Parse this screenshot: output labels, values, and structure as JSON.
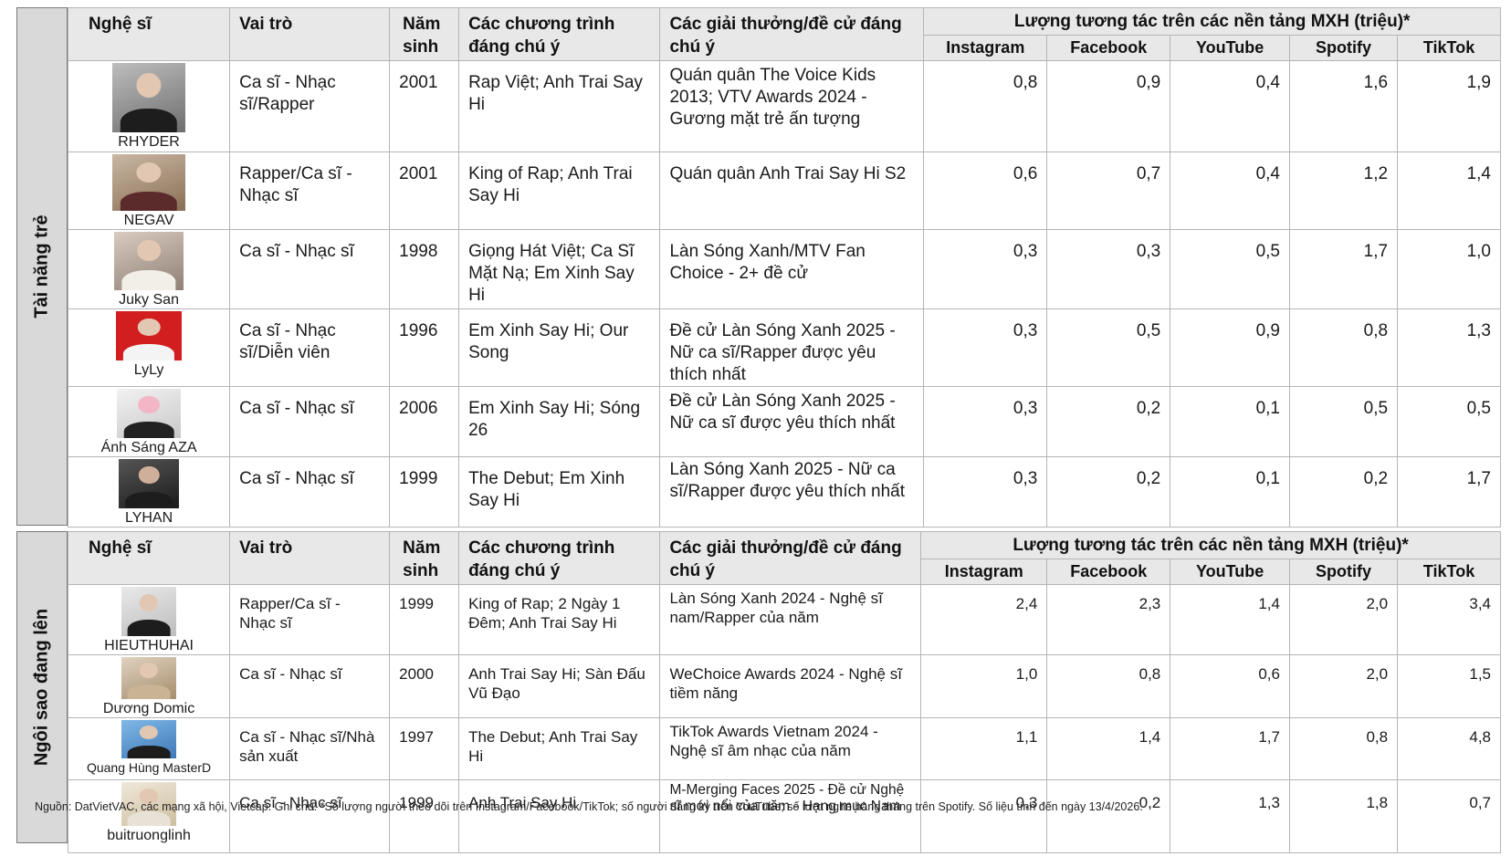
{
  "headers": {
    "artist": "Nghệ sĩ",
    "role": "Vai trò",
    "year": "Năm sinh",
    "programs": "Các chương trình đáng chú ý",
    "awards": "Các giải thưởng/đề cử đáng chú ý",
    "engagement": "Lượng tương tác trên các nền tảng MXH (triệu)*",
    "platforms": [
      "Instagram",
      "Facebook",
      "YouTube",
      "Spotify",
      "TikTok"
    ]
  },
  "sections": [
    {
      "label": "Tài năng trẻ",
      "rows": [
        {
          "name": "RHYDER",
          "role": "Ca sĩ - Nhạc sĩ/Rapper",
          "year": "2001",
          "programs": "Rap Việt; Anh Trai Say Hi",
          "awards": "Quán quân The Voice Kids 2013; VTV Awards 2024 - Gương mặt trẻ ấn tượng",
          "metrics": [
            "0,8",
            "0,9",
            "0,4",
            "1,6",
            "1,9"
          ]
        },
        {
          "name": "NEGAV",
          "role": "Rapper/Ca sĩ - Nhạc sĩ",
          "year": "2001",
          "programs": "King of Rap; Anh Trai Say Hi",
          "awards": "Quán quân Anh Trai Say Hi S2",
          "metrics": [
            "0,6",
            "0,7",
            "0,4",
            "1,2",
            "1,4"
          ]
        },
        {
          "name": "Juky San",
          "role": "Ca sĩ - Nhạc sĩ",
          "year": "1998",
          "programs": "Giọng Hát Việt; Ca Sĩ Mặt Nạ; Em Xinh Say Hi",
          "awards": "Làn Sóng Xanh/MTV Fan Choice - 2+ đề cử",
          "metrics": [
            "0,3",
            "0,3",
            "0,5",
            "1,7",
            "1,0"
          ]
        },
        {
          "name": "LyLy",
          "role": "Ca sĩ - Nhạc sĩ/Diễn viên",
          "year": "1996",
          "programs": "Em Xinh Say Hi; Our Song",
          "awards": "Đề cử Làn Sóng Xanh 2025 - Nữ ca sĩ/Rapper được yêu thích nhất",
          "metrics": [
            "0,3",
            "0,5",
            "0,9",
            "0,8",
            "1,3"
          ]
        },
        {
          "name": "Ánh Sáng AZA",
          "role": "Ca sĩ - Nhạc sĩ",
          "year": "2006",
          "programs": "Em Xinh Say Hi; Sóng 26",
          "awards": "Đề cử Làn Sóng Xanh 2025 - Nữ ca sĩ được yêu thích nhất",
          "metrics": [
            "0,3",
            "0,2",
            "0,1",
            "0,5",
            "0,5"
          ]
        },
        {
          "name": "LYHAN",
          "role": "Ca sĩ - Nhạc sĩ",
          "year": "1999",
          "programs": "The Debut; Em Xinh Say Hi",
          "awards": "Làn Sóng Xanh 2025 - Nữ ca sĩ/Rapper được yêu thích nhất",
          "metrics": [
            "0,3",
            "0,2",
            "0,1",
            "0,2",
            "1,7"
          ]
        }
      ]
    },
    {
      "label": "Ngôi sao đang lên",
      "rows": [
        {
          "name": "HIEUTHUHAI",
          "role": "Rapper/Ca sĩ - Nhạc sĩ",
          "year": "1999",
          "programs": "King of Rap; 2 Ngày 1 Đêm; Anh Trai Say Hi",
          "awards": "Làn Sóng Xanh 2024 - Nghệ sĩ nam/Rapper của năm",
          "metrics": [
            "2,4",
            "2,3",
            "1,4",
            "2,0",
            "3,4"
          ]
        },
        {
          "name": "Dương Domic",
          "role": "Ca sĩ - Nhạc sĩ",
          "year": "2000",
          "programs": "Anh Trai Say Hi; Sàn Đấu Vũ Đạo",
          "awards": "WeChoice Awards 2024 - Nghệ sĩ tiềm năng",
          "metrics": [
            "1,0",
            "0,8",
            "0,6",
            "2,0",
            "1,5"
          ]
        },
        {
          "name": "Quang Hùng MasterD",
          "role": "Ca sĩ - Nhạc sĩ/Nhà sản xuất",
          "year": "1997",
          "programs": "The Debut; Anh Trai Say Hi",
          "awards": "TikTok Awards Vietnam 2024 - Nghệ sĩ âm nhạc của năm",
          "metrics": [
            "1,1",
            "1,4",
            "1,7",
            "0,8",
            "4,8"
          ]
        },
        {
          "name": "buitruonglinh",
          "role": "Ca sĩ - Nhạc sĩ",
          "year": "1999",
          "programs": "Anh Trai Say Hi",
          "awards": "M-Merging Faces 2025 - Đề cử Nghệ sĩ mới nổi của năm - Hạng mục Nam",
          "metrics": [
            "0,3",
            "0,2",
            "1,3",
            "1,8",
            "0,7"
          ]
        }
      ]
    }
  ],
  "footnote": "Nguồn: DatVietVAC, các mạng xã hội, Vietcap. Ghi chú: *Số lượng người theo dõi trên Instagram/Facebook/TikTok; số người đăng ký trên YouTube; số lượt nghe hàng tháng trên Spotify. Số liệu tính đến ngày 13/4/2026."
}
